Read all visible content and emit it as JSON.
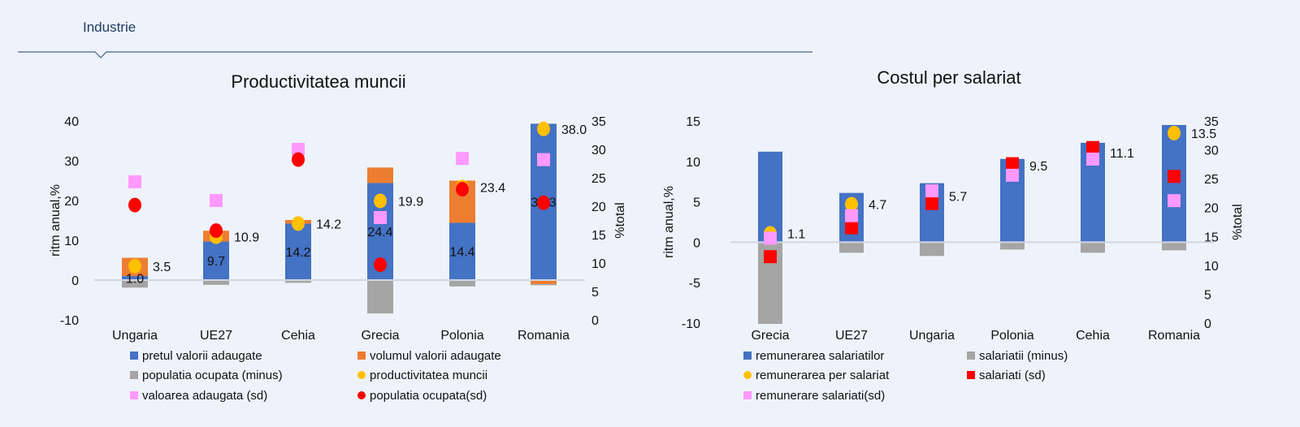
{
  "header": {
    "section_label": "Industrie"
  },
  "colors": {
    "blue": "#4472c4",
    "orange": "#ed7d31",
    "grey": "#a5a5a5",
    "yellow": "#ffc000",
    "red": "#ff0000",
    "pink": "#ff99ff",
    "header_text": "#1f3b64"
  },
  "chart_data": [
    {
      "type": "bar",
      "title": "Productivitatea muncii",
      "ylabel": "ritm anual,%",
      "y2label": "%total",
      "ylim": [
        -10,
        40
      ],
      "y2lim": [
        0,
        35
      ],
      "yticks": [
        "40",
        "30",
        "20",
        "10",
        "0",
        "-10"
      ],
      "y2ticks": [
        "35",
        "30",
        "25",
        "20",
        "15",
        "10",
        "5",
        "0"
      ],
      "stacked": true,
      "grid": false,
      "legend_position": "bottom",
      "categories": [
        "Ungaria",
        "UE27",
        "Cehia",
        "Grecia",
        "Polonia",
        "Romania"
      ],
      "bar_series": [
        {
          "name": "pretul valorii adaugate",
          "color": "#4472c4",
          "values": [
            1.0,
            9.7,
            14.2,
            24.4,
            14.4,
            39.3
          ],
          "labels": [
            "1.0",
            "9.7",
            "14.2",
            "24.4",
            "14.4",
            "39.3"
          ]
        },
        {
          "name": "volumul valorii adaugate",
          "color": "#ed7d31",
          "values": [
            4.6,
            2.7,
            0.9,
            3.9,
            10.6,
            -1.0
          ]
        },
        {
          "name": "populatia ocupata (minus)",
          "color": "#a5a5a5",
          "values": [
            -1.9,
            -1.2,
            -0.7,
            -8.4,
            -1.6,
            -0.3
          ]
        }
      ],
      "point_series": [
        {
          "name": "productivitatea muncii",
          "color": "#ffc000",
          "marker": "circle",
          "axis": "left",
          "values": [
            3.5,
            10.9,
            14.2,
            19.9,
            23.4,
            38.0
          ],
          "labels": [
            "3.5",
            "10.9",
            "14.2",
            "19.9",
            "23.4",
            "38.0"
          ]
        },
        {
          "name": "valoarea adaugata (sd)",
          "color": "#ff99ff",
          "marker": "square",
          "axis": "right",
          "values": [
            24.3,
            21.0,
            30.0,
            18.0,
            28.4,
            28.2
          ]
        },
        {
          "name": "populatia ocupata(sd)",
          "color": "#ff0000",
          "marker": "circle",
          "axis": "right",
          "values": [
            20.2,
            15.7,
            28.2,
            9.7,
            23.0,
            20.6
          ]
        }
      ],
      "legend_order": [
        "pretul valorii adaugate",
        "volumul valorii adaugate",
        "populatia ocupata (minus)",
        "productivitatea muncii",
        "valoarea adaugata (sd)",
        "populatia ocupata(sd)"
      ]
    },
    {
      "type": "bar",
      "title": "Costul per salariat",
      "ylabel": "ritm anual,%",
      "y2label": "%total",
      "ylim": [
        -10,
        15
      ],
      "y2lim": [
        0,
        35
      ],
      "yticks": [
        "15",
        "10",
        "5",
        "0",
        "-5",
        "-10"
      ],
      "y2ticks": [
        "35",
        "30",
        "25",
        "20",
        "15",
        "10",
        "5",
        "0"
      ],
      "stacked": true,
      "grid": false,
      "legend_position": "bottom",
      "categories": [
        "Grecia",
        "UE27",
        "Ungaria",
        "Polonia",
        "Cehia",
        "Romania"
      ],
      "bar_series": [
        {
          "name": "remunerarea salariatilor",
          "color": "#4472c4",
          "values": [
            11.2,
            6.1,
            7.3,
            10.3,
            12.3,
            14.5
          ]
        },
        {
          "name": "salariatii (minus)",
          "color": "#a5a5a5",
          "values": [
            -10.1,
            -1.3,
            -1.7,
            -0.9,
            -1.3,
            -1.0
          ]
        }
      ],
      "point_series": [
        {
          "name": "remunerarea per salariat",
          "color": "#ffc000",
          "marker": "circle",
          "axis": "left",
          "values": [
            1.1,
            4.7,
            5.7,
            9.5,
            11.1,
            13.5
          ],
          "labels": [
            "1.1",
            "4.7",
            "5.7",
            "9.5",
            "11.1",
            "13.5"
          ]
        },
        {
          "name": "salariati (sd)",
          "color": "#ff0000",
          "marker": "square",
          "axis": "right",
          "values": [
            11.5,
            16.5,
            20.7,
            27.6,
            30.4,
            25.4
          ]
        },
        {
          "name": "remunerare salariati(sd)",
          "color": "#ff99ff",
          "marker": "square",
          "axis": "right",
          "values": [
            14.7,
            18.6,
            22.9,
            25.6,
            28.4,
            21.2
          ]
        }
      ],
      "legend_order": [
        "remunerarea salariatilor",
        "salariatii (minus)",
        "remunerarea per salariat",
        "salariati (sd)",
        "remunerare salariati(sd)"
      ]
    }
  ]
}
